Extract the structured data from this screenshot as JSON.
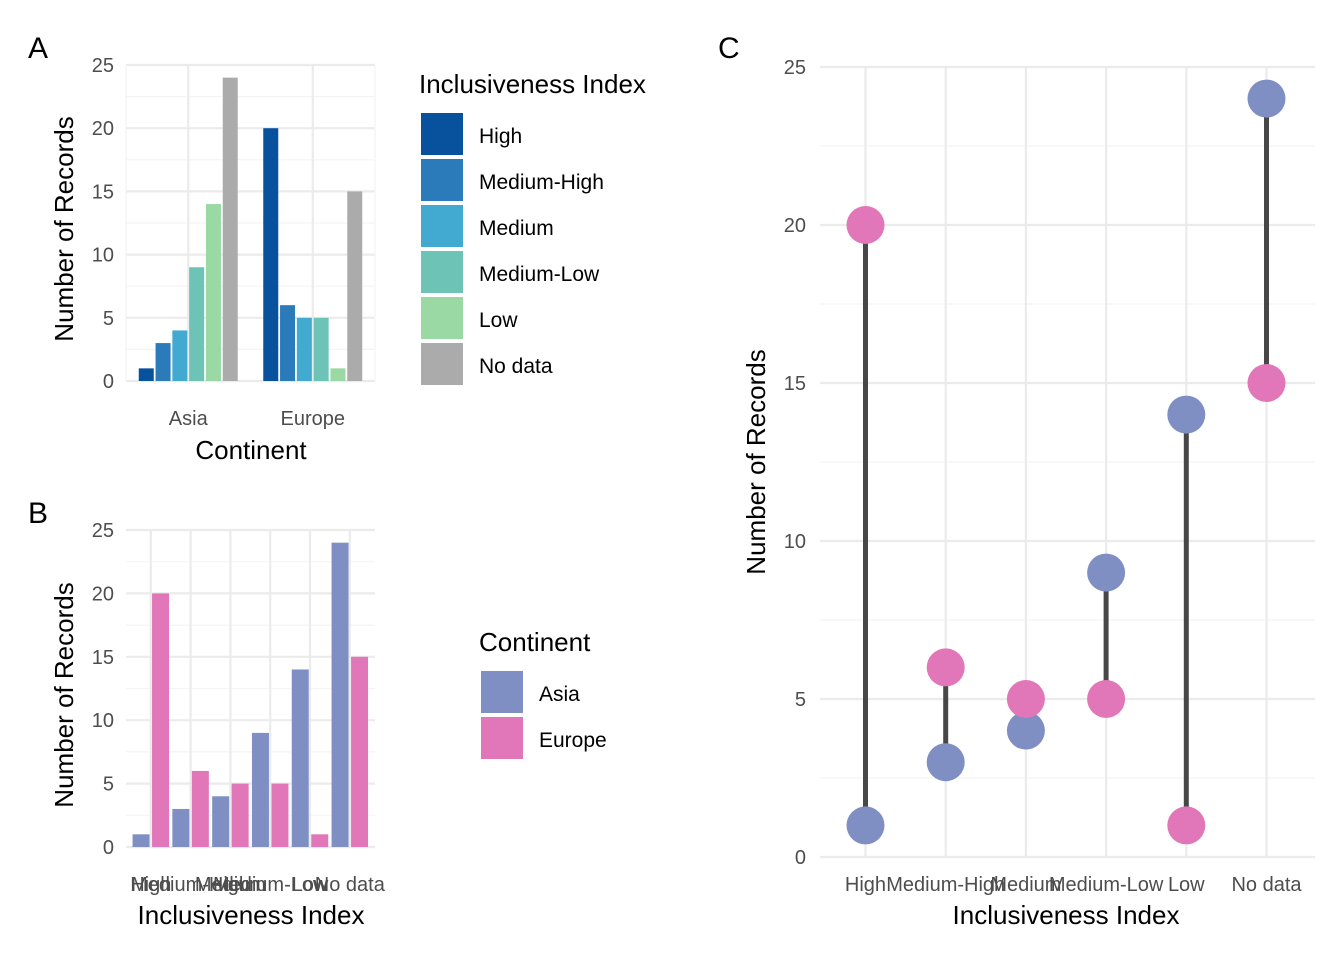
{
  "panels": {
    "a": {
      "tag": "A"
    },
    "b": {
      "tag": "B"
    },
    "c": {
      "tag": "C"
    }
  },
  "legend_index": {
    "title": "Inclusiveness Index",
    "items": [
      {
        "label": "High",
        "color": "#08519c"
      },
      {
        "label": "Medium-High",
        "color": "#2b7bba"
      },
      {
        "label": "Medium",
        "color": "#42a9d1"
      },
      {
        "label": "Medium-Low",
        "color": "#6cc3b6"
      },
      {
        "label": "Low",
        "color": "#9ad8a4"
      },
      {
        "label": "No data",
        "color": "#ababab"
      }
    ]
  },
  "legend_continent": {
    "title": "Continent",
    "items": [
      {
        "label": "Asia",
        "color": "#7f8fc3"
      },
      {
        "label": "Europe",
        "color": "#e176b8"
      }
    ]
  },
  "chart_data": [
    {
      "id": "A",
      "type": "bar",
      "title": "",
      "xlabel": "Continent",
      "ylabel": "Number of Records",
      "ylim": [
        0,
        25
      ],
      "yticks": [
        0,
        5,
        10,
        15,
        20,
        25
      ],
      "categories": [
        "Asia",
        "Europe"
      ],
      "series": [
        {
          "name": "High",
          "values": [
            1,
            20
          ]
        },
        {
          "name": "Medium-High",
          "values": [
            3,
            6
          ]
        },
        {
          "name": "Medium",
          "values": [
            4,
            5
          ]
        },
        {
          "name": "Medium-Low",
          "values": [
            9,
            5
          ]
        },
        {
          "name": "Low",
          "values": [
            14,
            1
          ]
        },
        {
          "name": "No data",
          "values": [
            24,
            15
          ]
        }
      ],
      "legend": "right",
      "grid": true
    },
    {
      "id": "B",
      "type": "bar",
      "title": "",
      "xlabel": "Inclusiveness Index",
      "ylabel": "Number of Records",
      "ylim": [
        0,
        25
      ],
      "yticks": [
        0,
        5,
        10,
        15,
        20,
        25
      ],
      "categories": [
        "High",
        "Medium-High",
        "Medium",
        "Medium-Low",
        "Low",
        "No data"
      ],
      "series": [
        {
          "name": "Asia",
          "values": [
            1,
            3,
            4,
            9,
            14,
            24
          ]
        },
        {
          "name": "Europe",
          "values": [
            20,
            6,
            5,
            5,
            1,
            15
          ]
        }
      ],
      "legend": "right",
      "grid": true
    },
    {
      "id": "C",
      "type": "scatter",
      "subtype": "dumbbell",
      "title": "",
      "xlabel": "Inclusiveness Index",
      "ylabel": "Number of Records",
      "ylim": [
        0,
        25
      ],
      "yticks": [
        0,
        5,
        10,
        15,
        20,
        25
      ],
      "categories": [
        "High",
        "Medium-High",
        "Medium",
        "Medium-Low",
        "Low",
        "No data"
      ],
      "series": [
        {
          "name": "Asia",
          "values": [
            1,
            3,
            4,
            9,
            14,
            24
          ]
        },
        {
          "name": "Europe",
          "values": [
            20,
            6,
            5,
            5,
            1,
            15
          ]
        }
      ],
      "segment_color": "#474747",
      "legend": "none",
      "grid": true
    }
  ]
}
